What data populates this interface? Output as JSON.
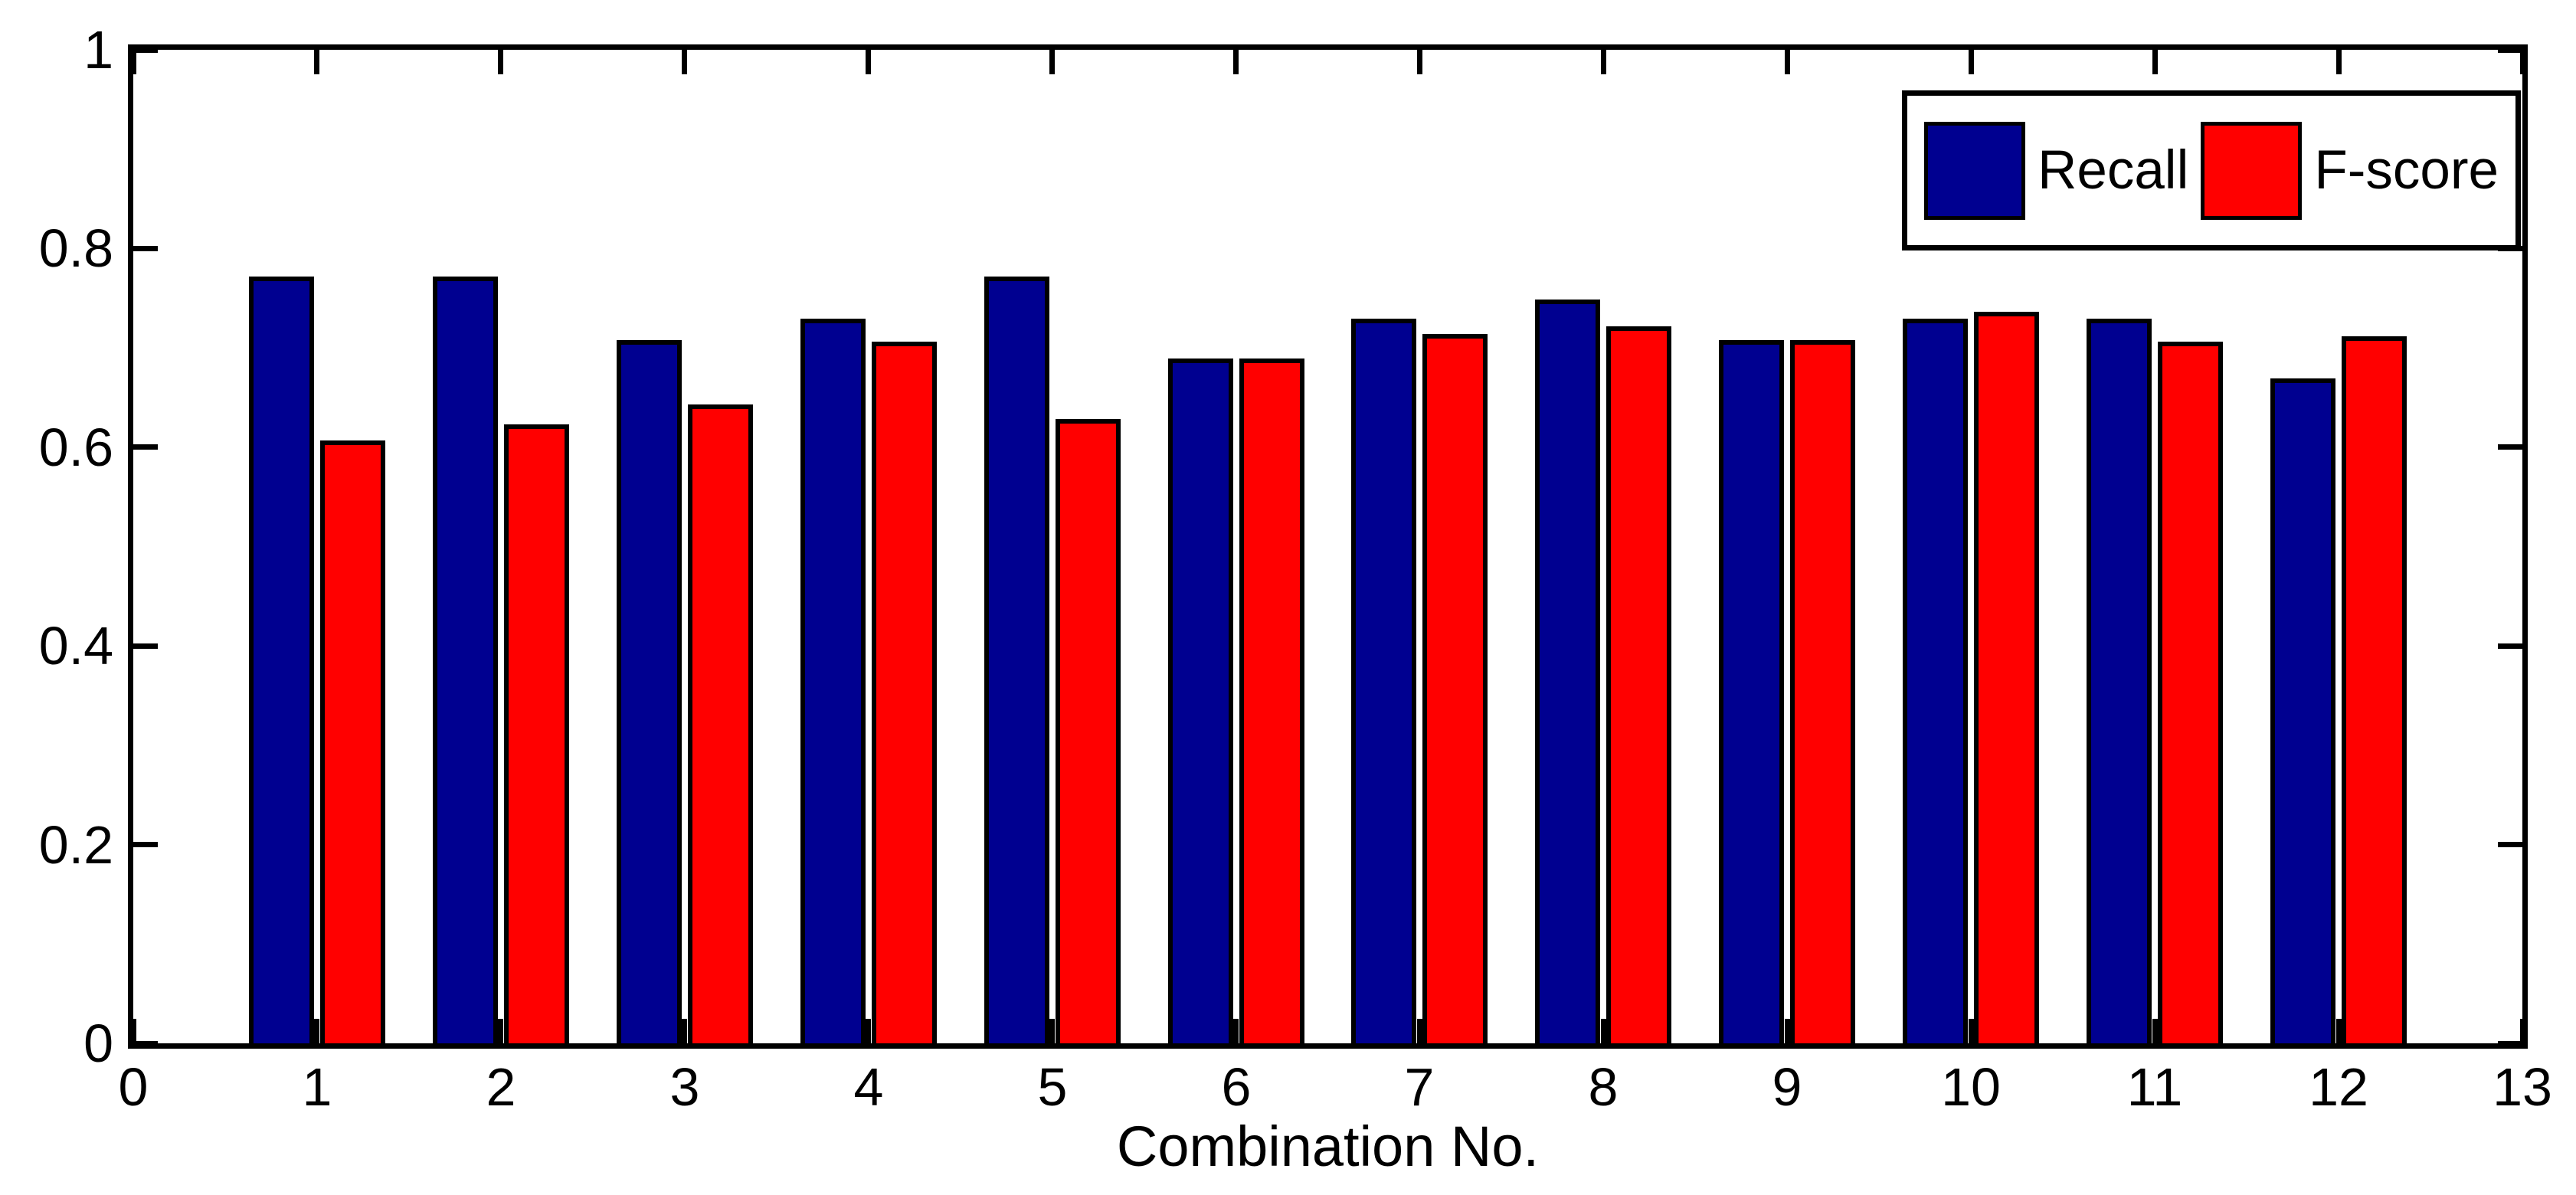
{
  "figure": {
    "background": "#ffffff",
    "axis_color": "#000000",
    "text_color": "#000000"
  },
  "chart_data": {
    "type": "bar",
    "title": "",
    "xlabel": "Combination No.",
    "ylabel": "",
    "categories": [
      1,
      2,
      3,
      4,
      5,
      6,
      7,
      8,
      9,
      10,
      11,
      12
    ],
    "series": [
      {
        "name": "Recall",
        "color": "#000090",
        "values": [
          0.772,
          0.772,
          0.708,
          0.729,
          0.772,
          0.689,
          0.729,
          0.749,
          0.708,
          0.729,
          0.729,
          0.669
        ]
      },
      {
        "name": "F-score",
        "color": "#ff0000",
        "values": [
          0.607,
          0.623,
          0.643,
          0.706,
          0.628,
          0.689,
          0.714,
          0.722,
          0.708,
          0.736,
          0.706,
          0.712
        ]
      }
    ],
    "xlim": [
      0,
      13
    ],
    "ylim": [
      0,
      1
    ],
    "x_ticks": [
      0,
      1,
      2,
      3,
      4,
      5,
      6,
      7,
      8,
      9,
      10,
      11,
      12,
      13
    ],
    "y_ticks": [
      0,
      0.2,
      0.4,
      0.6,
      0.8,
      1
    ],
    "y_tick_labels": [
      "0",
      "0.2",
      "0.4",
      "0.6",
      "0.8",
      "1"
    ],
    "x_tick_labels": [
      "0",
      "1",
      "2",
      "3",
      "4",
      "5",
      "6",
      "7",
      "8",
      "9",
      "10",
      "11",
      "12",
      "13"
    ],
    "grid": false,
    "tick_direction": "in",
    "box": true,
    "legend_position": "top-right",
    "legend_labels": [
      "Recall",
      "F-score"
    ]
  }
}
